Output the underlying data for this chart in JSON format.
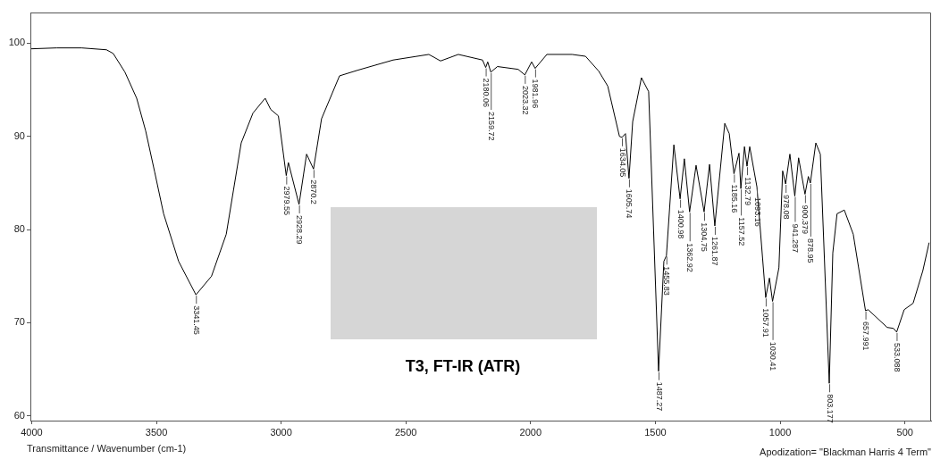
{
  "chart_data": {
    "type": "line",
    "xlabel": "Transmittance / Wavenumber (cm-1)",
    "xlim": [
      4005,
      395
    ],
    "xticks": [
      4000,
      3500,
      3000,
      2500,
      2000,
      1500,
      1000,
      500
    ],
    "ylim": [
      59.5,
      103.3
    ],
    "yticks": [
      60,
      70,
      80,
      90,
      100
    ],
    "grid": false,
    "legend": false,
    "marker": "none",
    "line_style": "solid",
    "series": [
      {
        "color": "#000000",
        "x": [
          4005,
          3900,
          3800,
          3700,
          3673,
          3626,
          3579,
          3543,
          3507,
          3471,
          3411,
          3341.45,
          3279,
          3220,
          3160,
          3113,
          3064,
          3042,
          3011,
          2979.55,
          2971,
          2928.29,
          2898,
          2870.2,
          2838,
          2766,
          2694,
          2551,
          2408,
          2361,
          2290,
          2193,
          2180.06,
          2172,
          2159.72,
          2133,
          2050,
          2023.32,
          1996,
          1981.96,
          1935,
          1834,
          1780,
          1727,
          1691,
          1644,
          1634.05,
          1620,
          1605.74,
          1591,
          1556,
          1527,
          1487.27,
          1466,
          1455.83,
          1426,
          1400.98,
          1384,
          1362.92,
          1337,
          1304.75,
          1283,
          1261.87,
          1222,
          1204,
          1185.16,
          1165,
          1157.52,
          1143,
          1132.79,
          1122,
          1119,
          1093.16,
          1057.91,
          1043,
          1030.41,
          1005,
          990,
          978.08,
          961,
          941.287,
          926,
          900.379,
          887,
          878.95,
          857,
          839,
          803.177,
          789,
          772,
          743,
          707,
          657.991,
          647,
          571,
          546,
          533.088,
          503,
          467,
          428,
          403
        ],
        "values": [
          99.4,
          99.5,
          99.5,
          99.3,
          98.9,
          96.9,
          94.1,
          90.6,
          86.2,
          81.7,
          76.6,
          73.0,
          75.0,
          79.5,
          89.3,
          92.5,
          94.1,
          92.9,
          92.2,
          85.8,
          87.2,
          82.7,
          88.1,
          86.5,
          91.9,
          96.5,
          97.1,
          98.2,
          98.8,
          98.1,
          98.8,
          98.2,
          97.4,
          98.0,
          96.9,
          97.5,
          97.2,
          96.6,
          98.0,
          97.3,
          98.8,
          98.8,
          98.6,
          97.0,
          95.4,
          90.0,
          89.9,
          90.3,
          85.5,
          91.6,
          96.3,
          94.8,
          64.8,
          76.6,
          77.2,
          89.1,
          83.3,
          87.6,
          81.9,
          86.9,
          81.9,
          87.0,
          80.4,
          91.4,
          90.3,
          86.0,
          88.2,
          84.4,
          88.9,
          86.8,
          88.9,
          88.9,
          84.6,
          72.7,
          74.8,
          72.3,
          75.9,
          86.3,
          84.9,
          88.1,
          83.6,
          87.7,
          83.8,
          85.7,
          85.0,
          89.3,
          88.1,
          63.5,
          77.5,
          81.7,
          82.1,
          79.5,
          71.3,
          71.4,
          69.5,
          69.4,
          69.0,
          71.4,
          72.1,
          75.6,
          78.6
        ]
      }
    ],
    "annotations": [
      {
        "text": "3341.45",
        "x": 3341.45,
        "y": 73.0
      },
      {
        "text": "2979.55",
        "x": 2979.55,
        "y": 85.8
      },
      {
        "text": "2928.29",
        "x": 2928.29,
        "y": 82.7
      },
      {
        "text": "2870.2",
        "x": 2870.2,
        "y": 86.5
      },
      {
        "text": "2180.06",
        "x": 2180.06,
        "y": 97.4
      },
      {
        "text": "2159.72",
        "x": 2159.72,
        "y": 96.9
      },
      {
        "text": "2023.32",
        "x": 2023.32,
        "y": 96.6
      },
      {
        "text": "1981.96",
        "x": 1981.96,
        "y": 97.3
      },
      {
        "text": "1634.05",
        "x": 1634.05,
        "y": 89.9
      },
      {
        "text": "1605.74",
        "x": 1605.74,
        "y": 85.5
      },
      {
        "text": "1487.27",
        "x": 1487.27,
        "y": 64.8
      },
      {
        "text": "1455.83",
        "x": 1455.83,
        "y": 77.2
      },
      {
        "text": "1400.98",
        "x": 1400.98,
        "y": 83.3
      },
      {
        "text": "1362.92",
        "x": 1362.92,
        "y": 81.9
      },
      {
        "text": "1304.75",
        "x": 1304.75,
        "y": 81.9
      },
      {
        "text": "1261.87",
        "x": 1261.87,
        "y": 80.4
      },
      {
        "text": "1185.16",
        "x": 1185.16,
        "y": 86.0
      },
      {
        "text": "1157.52",
        "x": 1157.52,
        "y": 84.4
      },
      {
        "text": "1132.79",
        "x": 1132.79,
        "y": 86.8
      },
      {
        "text": "1093.16",
        "x": 1093.16,
        "y": 84.6
      },
      {
        "text": "1057.91",
        "x": 1057.91,
        "y": 72.7
      },
      {
        "text": "1030.41",
        "x": 1030.41,
        "y": 72.3
      },
      {
        "text": "978.08",
        "x": 978.08,
        "y": 84.9
      },
      {
        "text": "941.287",
        "x": 941.287,
        "y": 83.6
      },
      {
        "text": "900.379",
        "x": 900.379,
        "y": 83.8
      },
      {
        "text": "878.95",
        "x": 878.95,
        "y": 85.0
      },
      {
        "text": "803.177",
        "x": 803.177,
        "y": 63.5
      },
      {
        "text": "657.991",
        "x": 657.991,
        "y": 71.3
      },
      {
        "text": "533.088",
        "x": 533.088,
        "y": 69.0
      },
      "T3, FT-IR (ATR)",
      "Apodization= \"Blackman Harris 4 Term\""
    ]
  }
}
